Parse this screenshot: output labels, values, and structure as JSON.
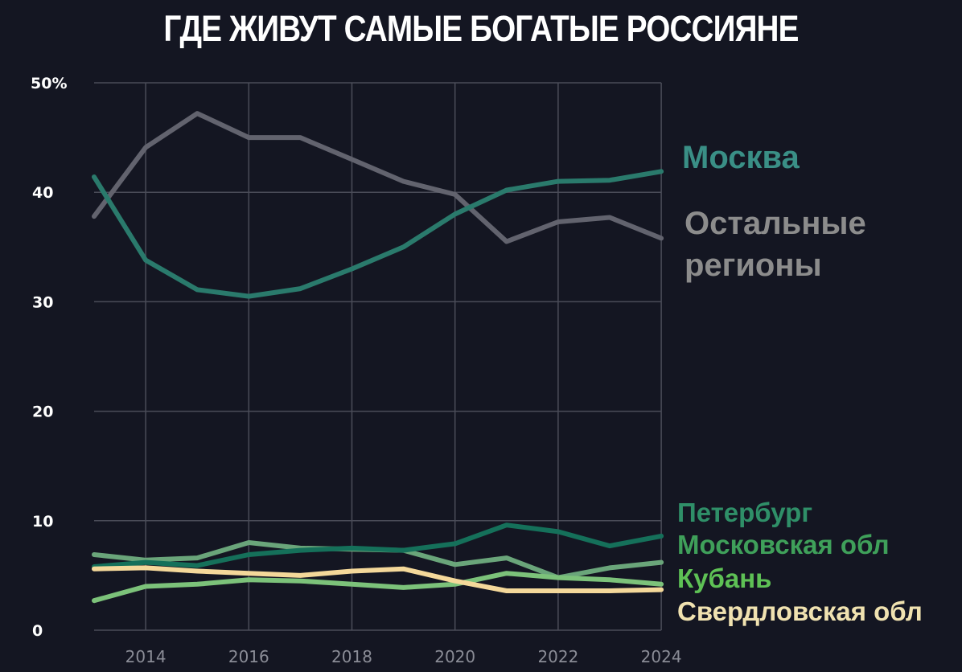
{
  "title": "ГДЕ ЖИВУТ САМЫЕ БОГАТЫЕ РОССИЯНЕ",
  "chart_data": {
    "type": "line",
    "title": "ГДЕ ЖИВУТ САМЫЕ БОГАТЫЕ РОССИЯНЕ",
    "xlabel": "",
    "ylabel": "",
    "x": [
      2013,
      2014,
      2015,
      2016,
      2017,
      2018,
      2019,
      2020,
      2021,
      2022,
      2023,
      2024
    ],
    "xticks": [
      "2014",
      "2016",
      "2018",
      "2020",
      "2022",
      "2024"
    ],
    "yticks": [
      "0",
      "10",
      "20",
      "30",
      "40",
      "50%"
    ],
    "ylim": [
      0,
      50
    ],
    "grid": true,
    "legend_position": "right, inline labels",
    "series": [
      {
        "name": "Москва",
        "color": "#2a7a6c",
        "label_color": "#3a8f86",
        "values": [
          41.4,
          33.8,
          31.1,
          30.5,
          31.2,
          33.0,
          35.0,
          38.0,
          40.2,
          41.0,
          41.1,
          41.9
        ]
      },
      {
        "name": "Остальные регионы",
        "color": "#62636e",
        "label_color": "#8c8c8c",
        "values": [
          37.8,
          44.1,
          47.2,
          45.0,
          45.0,
          43.0,
          41.0,
          39.8,
          35.5,
          37.3,
          37.7,
          35.8
        ]
      },
      {
        "name": "Петербург",
        "color": "#15705a",
        "label_color": "#2f8f68",
        "values": [
          5.8,
          6.2,
          5.9,
          6.9,
          7.3,
          7.5,
          7.3,
          7.9,
          9.6,
          9.0,
          7.7,
          8.6
        ]
      },
      {
        "name": "Московская обл",
        "color": "#6aa57a",
        "label_color": "#3fa05a",
        "values": [
          6.9,
          6.4,
          6.6,
          8.0,
          7.5,
          7.4,
          7.3,
          6.0,
          6.6,
          4.8,
          5.7,
          6.2
        ]
      },
      {
        "name": "Кубань",
        "color": "#7cc27a",
        "label_color": "#5ec155",
        "values": [
          2.7,
          4.0,
          4.2,
          4.6,
          4.5,
          4.2,
          3.9,
          4.2,
          5.2,
          4.8,
          4.6,
          4.2
        ]
      },
      {
        "name": "Свердловская обл",
        "color": "#f4d89a",
        "label_color": "#f0e2b0",
        "values": [
          5.6,
          5.7,
          5.4,
          5.2,
          5.0,
          5.4,
          5.6,
          4.5,
          3.6,
          3.6,
          3.6,
          3.7
        ]
      }
    ]
  },
  "legend": {
    "moscow": "Москва",
    "others_line1": "Остальные",
    "others_line2": "регионы",
    "spb": "Петербург",
    "mosobl": "Московская обл",
    "kuban": "Кубань",
    "sverdlovsk": "Свердловская обл"
  },
  "colors": {
    "background": "#141622",
    "grid": "#4a4c58"
  }
}
